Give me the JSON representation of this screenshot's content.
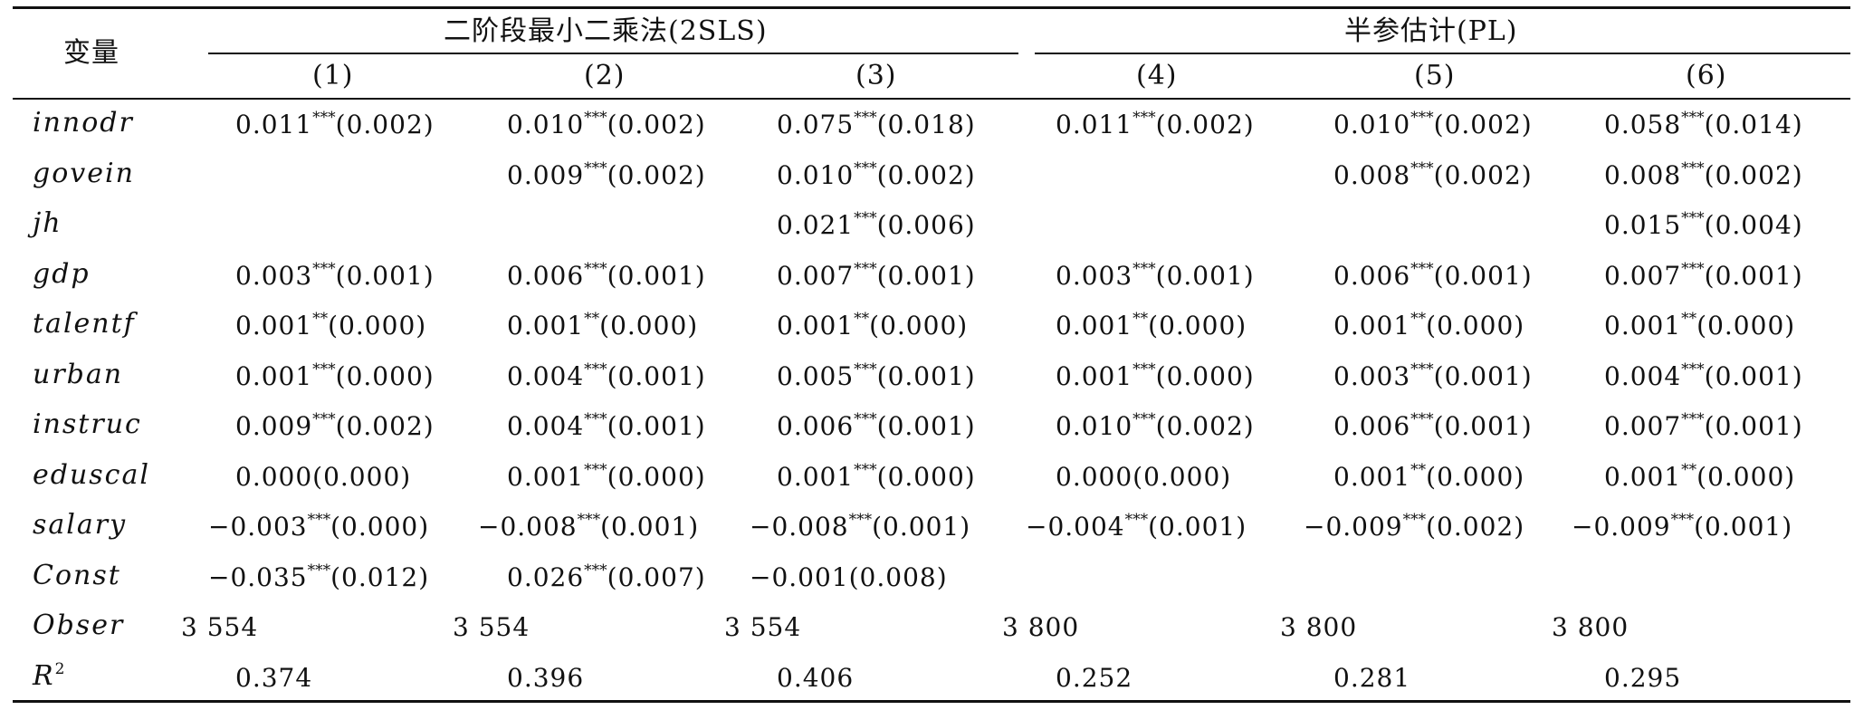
{
  "table": {
    "stub_header": "变量",
    "group_headers": [
      "二阶段最小二乘法(2SLS)",
      "半参估计(PL)"
    ],
    "column_headers": [
      "(1)",
      "(2)",
      "(3)",
      "(4)",
      "(5)",
      "(6)"
    ],
    "rows": [
      {
        "var": "innodr",
        "cells": [
          {
            "v": "0.011",
            "s": "***",
            "se": "(0.002)"
          },
          {
            "v": "0.010",
            "s": "***",
            "se": "(0.002)"
          },
          {
            "v": "0.075",
            "s": "***",
            "se": "(0.018)"
          },
          {
            "v": "0.011",
            "s": "***",
            "se": "(0.002)"
          },
          {
            "v": "0.010",
            "s": "***",
            "se": "(0.002)"
          },
          {
            "v": "0.058",
            "s": "***",
            "se": "(0.014)"
          }
        ]
      },
      {
        "var": "govein",
        "cells": [
          null,
          {
            "v": "0.009",
            "s": "***",
            "se": "(0.002)"
          },
          {
            "v": "0.010",
            "s": "***",
            "se": "(0.002)"
          },
          null,
          {
            "v": "0.008",
            "s": "***",
            "se": "(0.002)"
          },
          {
            "v": "0.008",
            "s": "***",
            "se": "(0.002)"
          }
        ]
      },
      {
        "var": "jh",
        "cells": [
          null,
          null,
          {
            "v": "0.021",
            "s": "***",
            "se": "(0.006)"
          },
          null,
          null,
          {
            "v": "0.015",
            "s": "***",
            "se": "(0.004)"
          }
        ]
      },
      {
        "var": "gdp",
        "cells": [
          {
            "v": "0.003",
            "s": "***",
            "se": "(0.001)"
          },
          {
            "v": "0.006",
            "s": "***",
            "se": "(0.001)"
          },
          {
            "v": "0.007",
            "s": "***",
            "se": "(0.001)"
          },
          {
            "v": "0.003",
            "s": "***",
            "se": "(0.001)"
          },
          {
            "v": "0.006",
            "s": "***",
            "se": "(0.001)"
          },
          {
            "v": "0.007",
            "s": "***",
            "se": "(0.001)"
          }
        ]
      },
      {
        "var": "talentf",
        "cells": [
          {
            "v": "0.001",
            "s": "**",
            "se": "(0.000)"
          },
          {
            "v": "0.001",
            "s": "**",
            "se": "(0.000)"
          },
          {
            "v": "0.001",
            "s": "**",
            "se": "(0.000)"
          },
          {
            "v": "0.001",
            "s": "**",
            "se": "(0.000)"
          },
          {
            "v": "0.001",
            "s": "**",
            "se": "(0.000)"
          },
          {
            "v": "0.001",
            "s": "**",
            "se": "(0.000)"
          }
        ]
      },
      {
        "var": "urban",
        "cells": [
          {
            "v": "0.001",
            "s": "***",
            "se": "(0.000)"
          },
          {
            "v": "0.004",
            "s": "***",
            "se": "(0.001)"
          },
          {
            "v": "0.005",
            "s": "***",
            "se": "(0.001)"
          },
          {
            "v": "0.001",
            "s": "***",
            "se": "(0.000)"
          },
          {
            "v": "0.003",
            "s": "***",
            "se": "(0.001)"
          },
          {
            "v": "0.004",
            "s": "***",
            "se": "(0.001)"
          }
        ]
      },
      {
        "var": "instruc",
        "cells": [
          {
            "v": "0.009",
            "s": "***",
            "se": "(0.002)"
          },
          {
            "v": "0.004",
            "s": "***",
            "se": "(0.001)"
          },
          {
            "v": "0.006",
            "s": "***",
            "se": "(0.001)"
          },
          {
            "v": "0.010",
            "s": "***",
            "se": "(0.002)"
          },
          {
            "v": "0.006",
            "s": "***",
            "se": "(0.001)"
          },
          {
            "v": "0.007",
            "s": "***",
            "se": "(0.001)"
          }
        ]
      },
      {
        "var": "eduscal",
        "cells": [
          {
            "v": "0.000",
            "s": "",
            "se": "(0.000)"
          },
          {
            "v": "0.001",
            "s": "***",
            "se": "(0.000)"
          },
          {
            "v": "0.001",
            "s": "***",
            "se": "(0.000)"
          },
          {
            "v": "0.000",
            "s": "",
            "se": "(0.000)"
          },
          {
            "v": "0.001",
            "s": "**",
            "se": "(0.000)"
          },
          {
            "v": "0.001",
            "s": "**",
            "se": "(0.000)"
          }
        ]
      },
      {
        "var": "salary",
        "cells": [
          {
            "v": "−0.003",
            "s": "***",
            "se": "(0.000)"
          },
          {
            "v": "−0.008",
            "s": "***",
            "se": "(0.001)"
          },
          {
            "v": "−0.008",
            "s": "***",
            "se": "(0.001)"
          },
          {
            "v": "−0.004",
            "s": "***",
            "se": "(0.001)"
          },
          {
            "v": "−0.009",
            "s": "***",
            "se": "(0.002)"
          },
          {
            "v": "−0.009",
            "s": "***",
            "se": "(0.001)"
          }
        ]
      },
      {
        "var": "Const",
        "cells": [
          {
            "v": "−0.035",
            "s": "***",
            "se": "(0.012)"
          },
          {
            "v": "0.026",
            "s": "***",
            "se": "(0.007)"
          },
          {
            "v": "−0.001",
            "s": "",
            "se": "(0.008)"
          },
          null,
          null,
          null
        ]
      },
      {
        "var": "Obser",
        "cells": [
          {
            "v": "3 554",
            "s": "",
            "se": ""
          },
          {
            "v": "3 554",
            "s": "",
            "se": ""
          },
          {
            "v": "3 554",
            "s": "",
            "se": ""
          },
          {
            "v": "3 800",
            "s": "",
            "se": ""
          },
          {
            "v": "3 800",
            "s": "",
            "se": ""
          },
          {
            "v": "3 800",
            "s": "",
            "se": ""
          }
        ]
      },
      {
        "var": "R",
        "var_sup": "2",
        "cells": [
          {
            "v": "0.374",
            "s": "",
            "se": ""
          },
          {
            "v": "0.396",
            "s": "",
            "se": ""
          },
          {
            "v": "0.406",
            "s": "",
            "se": ""
          },
          {
            "v": "0.252",
            "s": "",
            "se": ""
          },
          {
            "v": "0.281",
            "s": "",
            "se": ""
          },
          {
            "v": "0.295",
            "s": "",
            "se": ""
          }
        ]
      }
    ]
  }
}
